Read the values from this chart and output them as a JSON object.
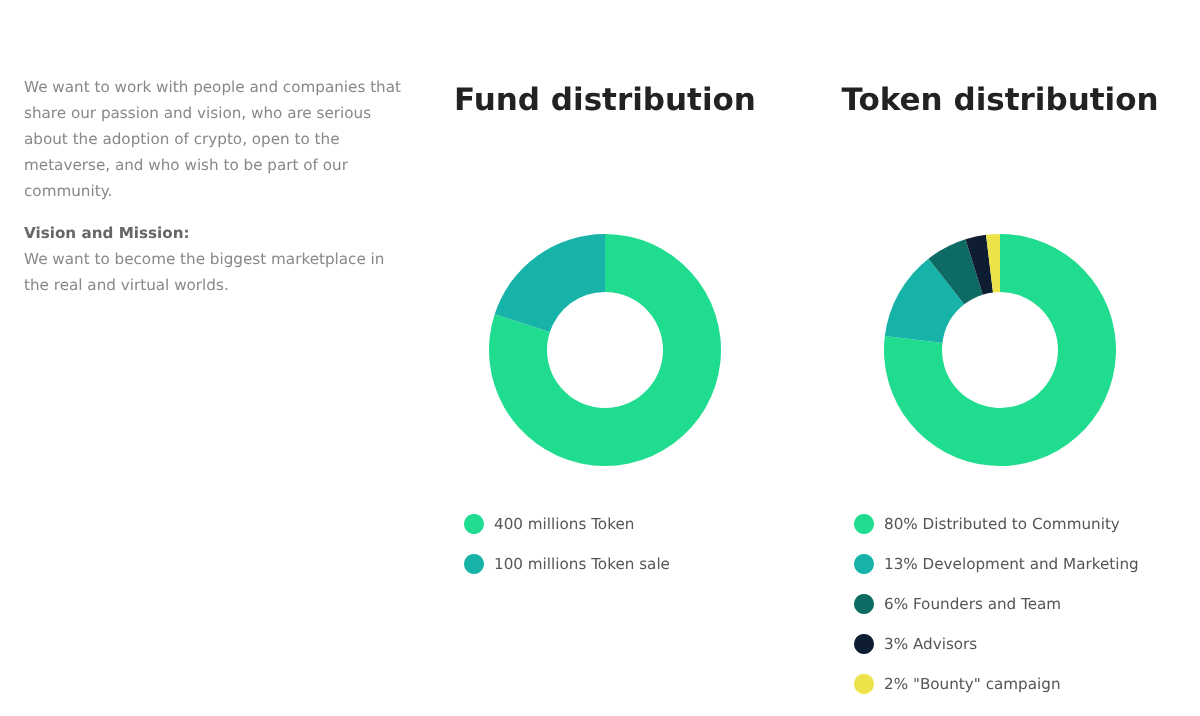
{
  "chart_data": [
    {
      "type": "other",
      "annotations": [
        "We want to work with people and companies that share our passion and vision, who are serious about the adoption of crypto, open to the metaverse, and who wish to be part of our community.",
        "We want to become the biggest marketplace in the real and virtual worlds."
      ],
      "subtitle": "Vision and Mission:"
    },
    {
      "type": "donut",
      "title": "Fund distribution",
      "categories": [
        "Token",
        "Token sale"
      ],
      "values": [
        400,
        100
      ],
      "value_labels": [
        "400 millions",
        "100 millions"
      ],
      "colors": [
        "#1fdc8f",
        "#17b3a9"
      ],
      "legend": "bottom"
    },
    {
      "type": "donut",
      "title": "Token distribution",
      "categories": [
        "Distributed to Community",
        "Development and Marketing",
        "Founders and Team",
        "Advisors",
        "\"Bounty\" campaign"
      ],
      "values": [
        80,
        13,
        6,
        3,
        2
      ],
      "value_labels": [
        "80%",
        "13%",
        "6%",
        "3%",
        "2%"
      ],
      "colors": [
        "#1fdc8f",
        "#17b3a9",
        "#0e6b64",
        "#0f1d33",
        "#ece24a"
      ],
      "legend": "bottom"
    }
  ]
}
